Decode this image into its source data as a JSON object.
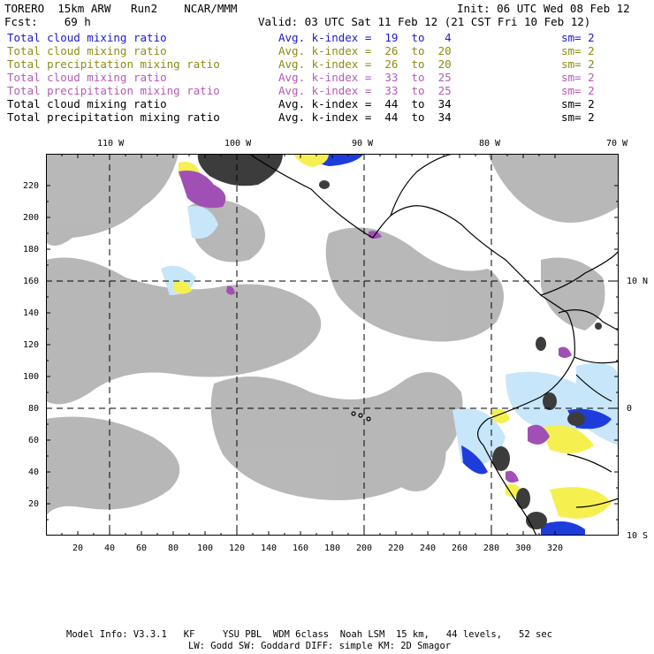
{
  "header": {
    "model_line": "TORERO  15km ARW   Run2    NCAR/MMM",
    "init": "Init: 06 UTC Wed 08 Feb 12",
    "fcst": "Fcst:    69 h",
    "valid": "Valid: 03 UTC Sat 11 Feb 12 (21 CST Fri 10 Feb 12)"
  },
  "legend": [
    {
      "label": "Total cloud mixing ratio",
      "kindex": "Avg. k-index =  19  to   4",
      "sm": "sm= 2",
      "color": "#1a1acc"
    },
    {
      "label": "Total cloud mixing ratio",
      "kindex": "Avg. k-index =  26  to  20",
      "sm": "sm= 2",
      "color": "#8c8c14"
    },
    {
      "label": "Total precipitation mixing ratio",
      "kindex": "Avg. k-index =  26  to  20",
      "sm": "sm= 2",
      "color": "#8c8c14"
    },
    {
      "label": "Total cloud mixing ratio",
      "kindex": "Avg. k-index =  33  to  25",
      "sm": "sm= 2",
      "color": "#b45ab4"
    },
    {
      "label": "Total precipitation mixing ratio",
      "kindex": "Avg. k-index =  33  to  25",
      "sm": "sm= 2",
      "color": "#b45ab4"
    },
    {
      "label": "Total cloud mixing ratio",
      "kindex": "Avg. k-index =  44  to  34",
      "sm": "sm= 2",
      "color": "#000000"
    },
    {
      "label": "Total precipitation mixing ratio",
      "kindex": "Avg. k-index =  44  to  34",
      "sm": "sm= 2",
      "color": "#000000"
    }
  ],
  "map": {
    "lon_labels": [
      "110 W",
      "100 W",
      "90 W",
      "80 W",
      "70 W"
    ],
    "lat_labels": [
      "10 N",
      "0",
      "10 S"
    ],
    "x_ticks": [
      "20",
      "40",
      "60",
      "80",
      "100",
      "120",
      "140",
      "160",
      "180",
      "200",
      "220",
      "240",
      "260",
      "280",
      "300",
      "320"
    ],
    "y_ticks": [
      "20",
      "40",
      "60",
      "80",
      "100",
      "120",
      "140",
      "160",
      "180",
      "200",
      "220"
    ],
    "colors": {
      "cloud_gray": "#b4b4b4",
      "dark": "#3c3c3c",
      "yellow": "#f5f050",
      "purple": "#a050b4",
      "light_blue": "#c8e6fa",
      "blue": "#1e3cdc",
      "coast": "#000000"
    }
  },
  "footer": {
    "line1": "Model Info: V3.3.1   KF     YSU PBL  WDM 6class  Noah LSM  15 km,   44 levels,   52 sec",
    "line2": "LW: Godd SW: Goddard DIFF: simple KM: 2D Smagor"
  }
}
